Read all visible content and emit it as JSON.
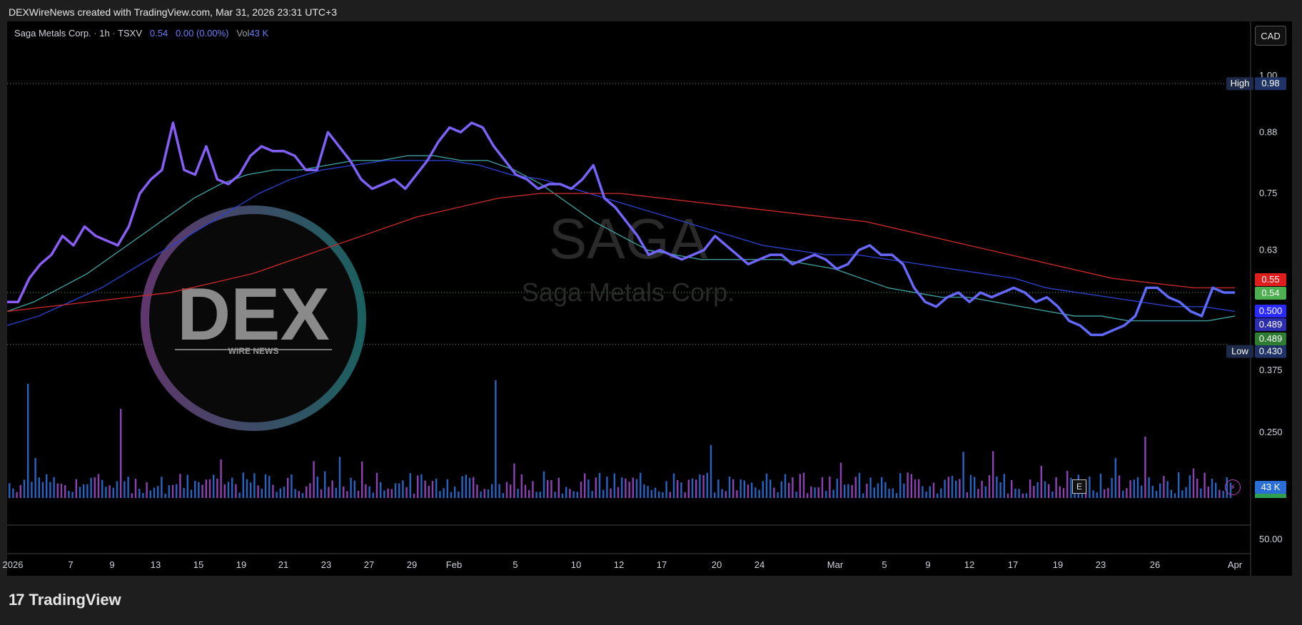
{
  "header": {
    "attribution": "DEXWireNews created with TradingView.com, Mar 31, 2026 23:31 UTC+3"
  },
  "legend": {
    "symbol": "Saga Metals Corp.",
    "interval": "1h",
    "exchange": "TSXV",
    "last": "0.54",
    "change": "0.00 (0.00%)",
    "vol_label": "Vol",
    "vol_value": "43 K"
  },
  "currency_button": "CAD",
  "watermark": {
    "ticker": "SAGA",
    "name": "Saga Metals Corp."
  },
  "logo": {
    "main": "DEX",
    "sub": "WIRE NEWS"
  },
  "footer": {
    "brand": "TradingView",
    "mark": "17"
  },
  "icons": {
    "earnings": "E",
    "earnings_icon": "e-badge-icon",
    "bolt_icon": "lightning-icon"
  },
  "colors": {
    "price": "#8d5cf6",
    "price_end": "#5b6cff",
    "ma_teal": "#3e9a9a",
    "ma_blue": "#2a3fc8",
    "ma_red": "#c62828",
    "vol_blue": "#2a6fd8",
    "vol_purple": "#9c48c8"
  },
  "chart_data": {
    "type": "line",
    "ylim": [
      0.375,
      1.0
    ],
    "y_ticks": [
      "1.00",
      "0.88",
      "0.75",
      "0.63",
      "0.375",
      "0.250"
    ],
    "volume_pane_tick": "50.00",
    "x_ticks": [
      "2026",
      "7",
      "9",
      "13",
      "15",
      "19",
      "21",
      "23",
      "27",
      "29",
      "Feb",
      "5",
      "10",
      "12",
      "17",
      "20",
      "24",
      "Mar",
      "5",
      "9",
      "12",
      "17",
      "19",
      "23",
      "26",
      "Apr"
    ],
    "high_label": "High",
    "high_value": "0.98",
    "low_label": "Low",
    "low_value": "0.430",
    "price_badges": [
      {
        "value": "0.55",
        "color": "#e01e1e"
      },
      {
        "value": "0.54",
        "color": "#4caf50"
      },
      {
        "value": "0.500",
        "color": "#2a2aff"
      },
      {
        "value": "0.489",
        "color": "#2d2db0"
      },
      {
        "value": "0.489",
        "color": "#2e7d32"
      }
    ],
    "volume_badge": "43 K",
    "series": [
      {
        "type": "price",
        "values": [
          0.52,
          0.52,
          0.57,
          0.6,
          0.62,
          0.66,
          0.64,
          0.68,
          0.66,
          0.65,
          0.64,
          0.68,
          0.75,
          0.78,
          0.8,
          0.9,
          0.8,
          0.79,
          0.85,
          0.78,
          0.77,
          0.79,
          0.83,
          0.85,
          0.84,
          0.84,
          0.83,
          0.8,
          0.8,
          0.88,
          0.85,
          0.82,
          0.78,
          0.76,
          0.77,
          0.78,
          0.76,
          0.79,
          0.82,
          0.86,
          0.89,
          0.88,
          0.9,
          0.89,
          0.85,
          0.82,
          0.79,
          0.78,
          0.76,
          0.77,
          0.77,
          0.76,
          0.78,
          0.81,
          0.74,
          0.72,
          0.69,
          0.66,
          0.62,
          0.63,
          0.62,
          0.61,
          0.62,
          0.63,
          0.66,
          0.64,
          0.62,
          0.6,
          0.61,
          0.62,
          0.62,
          0.6,
          0.61,
          0.62,
          0.61,
          0.59,
          0.6,
          0.63,
          0.64,
          0.62,
          0.62,
          0.6,
          0.55,
          0.52,
          0.51,
          0.53,
          0.54,
          0.52,
          0.54,
          0.53,
          0.54,
          0.55,
          0.54,
          0.52,
          0.53,
          0.51,
          0.48,
          0.47,
          0.45,
          0.45,
          0.46,
          0.47,
          0.49,
          0.55,
          0.55,
          0.53,
          0.52,
          0.5,
          0.49,
          0.55,
          0.54,
          0.54
        ]
      },
      {
        "type": "ma_teal",
        "values": [
          0.5,
          0.52,
          0.55,
          0.58,
          0.62,
          0.66,
          0.7,
          0.74,
          0.77,
          0.79,
          0.8,
          0.8,
          0.81,
          0.82,
          0.82,
          0.83,
          0.83,
          0.82,
          0.82,
          0.8,
          0.77,
          0.73,
          0.69,
          0.66,
          0.63,
          0.62,
          0.61,
          0.61,
          0.61,
          0.61,
          0.6,
          0.59,
          0.57,
          0.55,
          0.54,
          0.53,
          0.53,
          0.52,
          0.51,
          0.5,
          0.49,
          0.49,
          0.48,
          0.48,
          0.48,
          0.48,
          0.49
        ]
      },
      {
        "type": "ma_blue",
        "values": [
          0.47,
          0.49,
          0.52,
          0.55,
          0.59,
          0.63,
          0.67,
          0.71,
          0.75,
          0.78,
          0.8,
          0.81,
          0.82,
          0.82,
          0.82,
          0.81,
          0.79,
          0.78,
          0.76,
          0.74,
          0.72,
          0.7,
          0.68,
          0.66,
          0.64,
          0.63,
          0.62,
          0.62,
          0.61,
          0.6,
          0.59,
          0.58,
          0.57,
          0.55,
          0.54,
          0.53,
          0.52,
          0.51,
          0.51,
          0.5
        ]
      },
      {
        "type": "ma_red",
        "values": [
          0.5,
          0.51,
          0.52,
          0.53,
          0.54,
          0.56,
          0.58,
          0.61,
          0.64,
          0.67,
          0.7,
          0.72,
          0.74,
          0.75,
          0.75,
          0.75,
          0.74,
          0.73,
          0.72,
          0.71,
          0.7,
          0.69,
          0.67,
          0.65,
          0.63,
          0.61,
          0.59,
          0.57,
          0.56,
          0.55,
          0.55
        ]
      }
    ]
  }
}
